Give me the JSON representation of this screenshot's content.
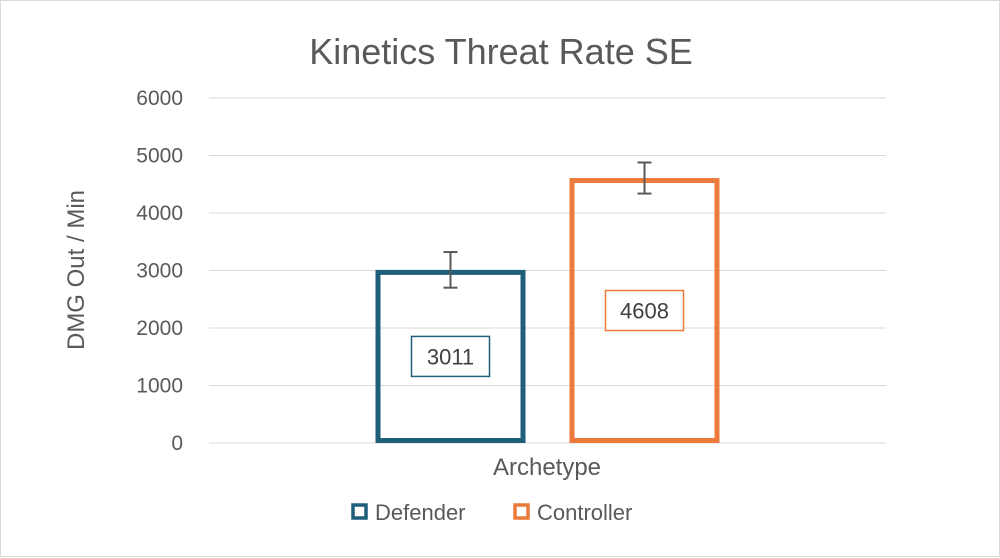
{
  "chart_data": {
    "type": "bar",
    "title": "Kinetics Threat Rate SE",
    "xlabel": "Archetype",
    "ylabel": "DMG Out / Min",
    "ylim": [
      0,
      6000
    ],
    "yticks": [
      0,
      1000,
      2000,
      3000,
      4000,
      5000,
      6000
    ],
    "grid": true,
    "legend_position": "bottom",
    "categories": [
      ""
    ],
    "series": [
      {
        "name": "Defender",
        "values": [
          3011
        ],
        "error": [
          310
        ],
        "color": "#1f5f7a",
        "data_label": "3011"
      },
      {
        "name": "Controller",
        "values": [
          4608
        ],
        "error": [
          270
        ],
        "color": "#ec7a3a",
        "data_label": "4608"
      }
    ]
  }
}
